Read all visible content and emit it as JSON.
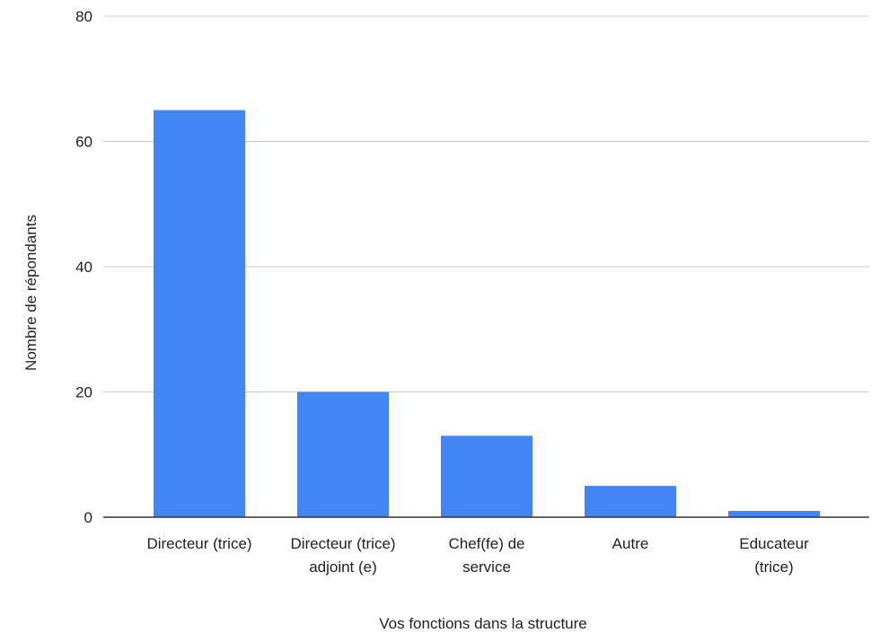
{
  "chart_data": {
    "type": "bar",
    "title": "",
    "xlabel": "Vos fonctions dans la structure",
    "ylabel": "Nombre de répondants",
    "categories": [
      [
        "Directeur (trice)"
      ],
      [
        "Directeur (trice)",
        "adjoint (e)"
      ],
      [
        "Chef(fe) de",
        "service"
      ],
      [
        "Autre"
      ],
      [
        "Educateur",
        "(trice)"
      ]
    ],
    "values": [
      65,
      20,
      13,
      5,
      1
    ],
    "ylim": [
      0,
      80
    ],
    "yticks": [
      "0",
      "20",
      "40",
      "60",
      "80"
    ],
    "grid": true,
    "legend": "none"
  },
  "colors": {
    "bar": "#4285f4",
    "grid": "#cccccc",
    "baseline": "#333333"
  }
}
